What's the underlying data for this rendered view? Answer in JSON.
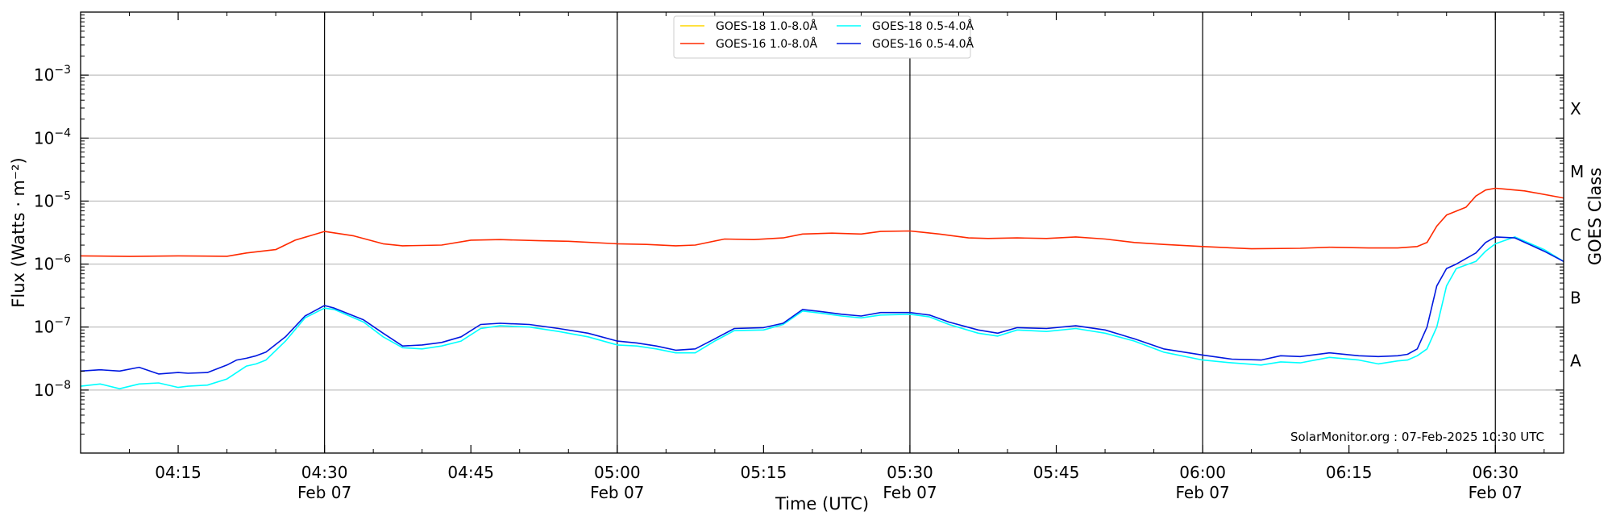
{
  "chart_data": {
    "type": "line",
    "title": "",
    "xlabel": "Time (UTC)",
    "ylabel": "Flux (Watts · m⁻²)",
    "y2label": "GOES Class",
    "yscale": "log",
    "ylim": [
      1e-09,
      0.01
    ],
    "xlim": [
      "04:05",
      "06:37"
    ],
    "grid": "horizontal",
    "legend_position": "top-center",
    "credit": "SolarMonitor.org : 07-Feb-2025 10:30 UTC",
    "y_ticks": [
      {
        "value": 1e-08,
        "base": "10",
        "exp": "−8"
      },
      {
        "value": 1e-07,
        "base": "10",
        "exp": "−7"
      },
      {
        "value": 1e-06,
        "base": "10",
        "exp": "−6"
      },
      {
        "value": 1e-05,
        "base": "10",
        "exp": "−5"
      },
      {
        "value": 0.0001,
        "base": "10",
        "exp": "−4"
      },
      {
        "value": 0.001,
        "base": "10",
        "exp": "−3"
      }
    ],
    "x_ticks": [
      {
        "time": "04:15",
        "label": "04:15",
        "date": ""
      },
      {
        "time": "04:30",
        "label": "04:30",
        "date": "Feb 07"
      },
      {
        "time": "04:45",
        "label": "04:45",
        "date": ""
      },
      {
        "time": "05:00",
        "label": "05:00",
        "date": "Feb 07"
      },
      {
        "time": "05:15",
        "label": "05:15",
        "date": ""
      },
      {
        "time": "05:30",
        "label": "05:30",
        "date": "Feb 07"
      },
      {
        "time": "05:45",
        "label": "05:45",
        "date": ""
      },
      {
        "time": "06:00",
        "label": "06:00",
        "date": "Feb 07"
      },
      {
        "time": "06:15",
        "label": "06:15",
        "date": ""
      },
      {
        "time": "06:30",
        "label": "06:30",
        "date": "Feb 07"
      }
    ],
    "vlines": [
      "04:30",
      "05:00",
      "05:30",
      "06:00",
      "06:30"
    ],
    "goes_classes": [
      {
        "label": "A",
        "value": 3e-08
      },
      {
        "label": "B",
        "value": 3e-07
      },
      {
        "label": "C",
        "value": 3e-06
      },
      {
        "label": "M",
        "value": 3e-05
      },
      {
        "label": "X",
        "value": 0.0003
      }
    ],
    "legend_layout": [
      [
        "GOES-18 1.0-8.0Å",
        "GOES-16 1.0-8.0Å"
      ],
      [
        "GOES-18 0.5-4.0Å",
        "GOES-16 0.5-4.0Å"
      ]
    ],
    "series": [
      {
        "name": "GOES-18 1.0-8.0Å",
        "color": "#ffd700",
        "x": [],
        "y": []
      },
      {
        "name": "GOES-16 1.0-8.0Å",
        "color": "#ff2a00",
        "x": [
          "04:05",
          "04:10",
          "04:15",
          "04:20",
          "04:22",
          "04:25",
          "04:27",
          "04:30",
          "04:33",
          "04:36",
          "04:38",
          "04:42",
          "04:45",
          "04:48",
          "04:52",
          "04:55",
          "05:00",
          "05:03",
          "05:06",
          "05:08",
          "05:11",
          "05:14",
          "05:17",
          "05:19",
          "05:22",
          "05:25",
          "05:27",
          "05:30",
          "05:33",
          "05:36",
          "05:38",
          "05:41",
          "05:44",
          "05:47",
          "05:50",
          "05:53",
          "05:56",
          "06:00",
          "06:05",
          "06:10",
          "06:13",
          "06:17",
          "06:20",
          "06:22",
          "06:23",
          "06:24",
          "06:25",
          "06:27",
          "06:28",
          "06:29",
          "06:30",
          "06:31",
          "06:33",
          "06:37"
        ],
        "y": [
          1.35e-06,
          1.32e-06,
          1.35e-06,
          1.33e-06,
          1.5e-06,
          1.7e-06,
          2.4e-06,
          3.3e-06,
          2.8e-06,
          2.1e-06,
          1.95e-06,
          2e-06,
          2.4e-06,
          2.45e-06,
          2.35e-06,
          2.3e-06,
          2.1e-06,
          2.05e-06,
          1.95e-06,
          2e-06,
          2.5e-06,
          2.45e-06,
          2.6e-06,
          3e-06,
          3.1e-06,
          3e-06,
          3.3e-06,
          3.35e-06,
          3e-06,
          2.6e-06,
          2.55e-06,
          2.6e-06,
          2.55e-06,
          2.7e-06,
          2.5e-06,
          2.2e-06,
          2.05e-06,
          1.9e-06,
          1.75e-06,
          1.78e-06,
          1.85e-06,
          1.8e-06,
          1.8e-06,
          1.9e-06,
          2.2e-06,
          4e-06,
          6e-06,
          8e-06,
          1.2e-05,
          1.5e-05,
          1.6e-05,
          1.55e-05,
          1.45e-05,
          1.12e-05
        ]
      },
      {
        "name": "GOES-18 0.5-4.0Å",
        "color": "#00ffff",
        "x": [
          "04:05",
          "04:07",
          "04:09",
          "04:11",
          "04:13",
          "04:15",
          "04:16",
          "04:18",
          "04:20",
          "04:21",
          "04:22",
          "04:23",
          "04:24",
          "04:26",
          "04:28",
          "04:30",
          "04:31",
          "04:34",
          "04:36",
          "04:38",
          "04:40",
          "04:42",
          "04:44",
          "04:46",
          "04:48",
          "04:51",
          "04:54",
          "04:57",
          "05:00",
          "05:02",
          "05:04",
          "05:06",
          "05:08",
          "05:10",
          "05:12",
          "05:15",
          "05:17",
          "05:19",
          "05:21",
          "05:23",
          "05:25",
          "05:27",
          "05:30",
          "05:32",
          "05:34",
          "05:37",
          "05:39",
          "05:41",
          "05:44",
          "05:47",
          "05:50",
          "05:53",
          "05:56",
          "06:00",
          "06:03",
          "06:06",
          "06:08",
          "06:10",
          "06:13",
          "06:16",
          "06:18",
          "06:20",
          "06:21",
          "06:22",
          "06:23",
          "06:24",
          "06:25",
          "06:26",
          "06:28",
          "06:29",
          "06:30",
          "06:32",
          "06:35",
          "06:37"
        ],
        "y": [
          1.15e-08,
          1.25e-08,
          1.05e-08,
          1.25e-08,
          1.3e-08,
          1.1e-08,
          1.15e-08,
          1.2e-08,
          1.5e-08,
          1.9e-08,
          2.4e-08,
          2.6e-08,
          3e-08,
          6e-08,
          1.4e-07,
          2e-07,
          1.9e-07,
          1.2e-07,
          7e-08,
          4.7e-08,
          4.5e-08,
          5e-08,
          6e-08,
          9.5e-08,
          1.05e-07,
          1e-07,
          8.5e-08,
          7e-08,
          5.2e-08,
          5e-08,
          4.5e-08,
          3.9e-08,
          3.9e-08,
          6e-08,
          8.8e-08,
          9e-08,
          1.1e-07,
          1.8e-07,
          1.65e-07,
          1.5e-07,
          1.4e-07,
          1.55e-07,
          1.6e-07,
          1.45e-07,
          1.1e-07,
          8e-08,
          7.2e-08,
          9e-08,
          8.5e-08,
          9.5e-08,
          8e-08,
          6e-08,
          4e-08,
          3e-08,
          2.7e-08,
          2.5e-08,
          2.8e-08,
          2.7e-08,
          3.3e-08,
          3e-08,
          2.6e-08,
          2.9e-08,
          3e-08,
          3.5e-08,
          4.5e-08,
          1e-07,
          4.5e-07,
          8.5e-07,
          1.1e-06,
          1.6e-06,
          2.1e-06,
          2.7e-06,
          1.7e-06,
          1.1e-06
        ]
      },
      {
        "name": "GOES-16 0.5-4.0Å",
        "color": "#0018e0",
        "x": [
          "04:05",
          "04:07",
          "04:09",
          "04:11",
          "04:13",
          "04:15",
          "04:16",
          "04:18",
          "04:20",
          "04:21",
          "04:22",
          "04:23",
          "04:24",
          "04:26",
          "04:28",
          "04:30",
          "04:31",
          "04:34",
          "04:36",
          "04:38",
          "04:40",
          "04:42",
          "04:44",
          "04:46",
          "04:48",
          "04:51",
          "04:54",
          "04:57",
          "05:00",
          "05:02",
          "05:04",
          "05:06",
          "05:08",
          "05:10",
          "05:12",
          "05:15",
          "05:17",
          "05:19",
          "05:21",
          "05:23",
          "05:25",
          "05:27",
          "05:30",
          "05:32",
          "05:34",
          "05:37",
          "05:39",
          "05:41",
          "05:44",
          "05:47",
          "05:50",
          "05:53",
          "05:56",
          "06:00",
          "06:03",
          "06:06",
          "06:08",
          "06:10",
          "06:13",
          "06:16",
          "06:18",
          "06:20",
          "06:21",
          "06:22",
          "06:23",
          "06:24",
          "06:25",
          "06:26",
          "06:28",
          "06:29",
          "06:30",
          "06:32",
          "06:35",
          "06:37"
        ],
        "y": [
          2e-08,
          2.1e-08,
          2e-08,
          2.3e-08,
          1.8e-08,
          1.9e-08,
          1.85e-08,
          1.9e-08,
          2.5e-08,
          3e-08,
          3.2e-08,
          3.5e-08,
          4e-08,
          7e-08,
          1.5e-07,
          2.2e-07,
          2e-07,
          1.3e-07,
          8e-08,
          5e-08,
          5.2e-08,
          5.7e-08,
          7e-08,
          1.1e-07,
          1.15e-07,
          1.1e-07,
          9.5e-08,
          8e-08,
          6e-08,
          5.6e-08,
          5e-08,
          4.3e-08,
          4.5e-08,
          6.5e-08,
          9.5e-08,
          9.8e-08,
          1.15e-07,
          1.9e-07,
          1.75e-07,
          1.6e-07,
          1.5e-07,
          1.7e-07,
          1.7e-07,
          1.55e-07,
          1.2e-07,
          9e-08,
          8e-08,
          9.8e-08,
          9.5e-08,
          1.05e-07,
          9e-08,
          6.5e-08,
          4.5e-08,
          3.6e-08,
          3.1e-08,
          3e-08,
          3.5e-08,
          3.4e-08,
          3.9e-08,
          3.5e-08,
          3.4e-08,
          3.5e-08,
          3.7e-08,
          4.5e-08,
          1e-07,
          4.5e-07,
          8.5e-07,
          1e-06,
          1.5e-06,
          2.2e-06,
          2.7e-06,
          2.6e-06,
          1.6e-06,
          1.1e-06
        ]
      }
    ]
  }
}
